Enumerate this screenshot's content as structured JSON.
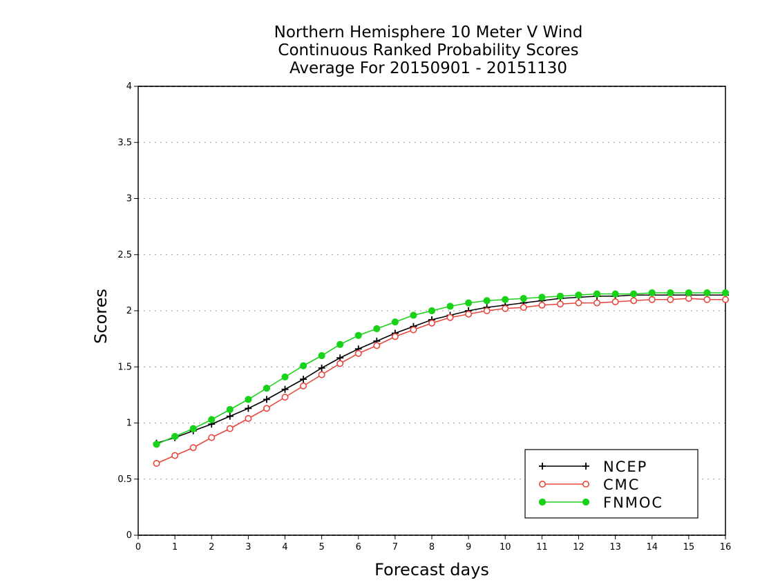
{
  "chart_data": {
    "type": "line",
    "title_lines": [
      "Northern Hemisphere 10 Meter V Wind",
      "Continuous Ranked Probability Scores",
      "Average For 20150901 - 20151130"
    ],
    "xlabel": "Forecast days",
    "ylabel": "Scores",
    "xlim": [
      0,
      16
    ],
    "ylim": [
      0,
      4
    ],
    "x_ticks": [
      0,
      1,
      2,
      3,
      4,
      5,
      6,
      7,
      8,
      9,
      10,
      11,
      12,
      13,
      14,
      15,
      16
    ],
    "y_ticks": [
      0,
      0.5,
      1,
      1.5,
      2,
      2.5,
      3,
      3.5,
      4
    ],
    "y_tick_labels": [
      "0",
      "0.5",
      "1",
      "1.5",
      "2",
      "2.5",
      "3",
      "3.5",
      "4"
    ],
    "grid": "horizontal dotted",
    "legend_position": "bottom-right",
    "x": [
      0.5,
      1,
      1.5,
      2,
      2.5,
      3,
      3.5,
      4,
      4.5,
      5,
      5.5,
      6,
      6.5,
      7,
      7.5,
      8,
      8.5,
      9,
      9.5,
      10,
      10.5,
      11,
      11.5,
      12,
      12.5,
      13,
      13.5,
      14,
      14.5,
      15,
      15.5,
      16
    ],
    "series": [
      {
        "name": "NCEP",
        "color": "#000000",
        "marker": "plus",
        "values": [
          0.82,
          0.87,
          0.93,
          0.99,
          1.06,
          1.13,
          1.21,
          1.3,
          1.39,
          1.49,
          1.58,
          1.66,
          1.73,
          1.8,
          1.86,
          1.92,
          1.96,
          2.0,
          2.03,
          2.05,
          2.07,
          2.09,
          2.11,
          2.12,
          2.13,
          2.13,
          2.14,
          2.14,
          2.14,
          2.14,
          2.14,
          2.14
        ]
      },
      {
        "name": "CMC",
        "color": "#e8463c",
        "marker": "open-circle",
        "values": [
          0.64,
          0.71,
          0.78,
          0.87,
          0.95,
          1.04,
          1.13,
          1.23,
          1.33,
          1.43,
          1.53,
          1.62,
          1.69,
          1.77,
          1.83,
          1.89,
          1.94,
          1.97,
          2.0,
          2.02,
          2.03,
          2.05,
          2.06,
          2.07,
          2.07,
          2.08,
          2.09,
          2.1,
          2.1,
          2.11,
          2.1,
          2.1
        ]
      },
      {
        "name": "FNMOC",
        "color": "#19d219",
        "marker": "filled-circle",
        "values": [
          0.81,
          0.88,
          0.95,
          1.03,
          1.12,
          1.21,
          1.31,
          1.41,
          1.51,
          1.6,
          1.7,
          1.78,
          1.84,
          1.9,
          1.96,
          2.0,
          2.04,
          2.07,
          2.09,
          2.1,
          2.11,
          2.12,
          2.13,
          2.14,
          2.15,
          2.15,
          2.15,
          2.16,
          2.16,
          2.16,
          2.16,
          2.16
        ]
      }
    ]
  }
}
